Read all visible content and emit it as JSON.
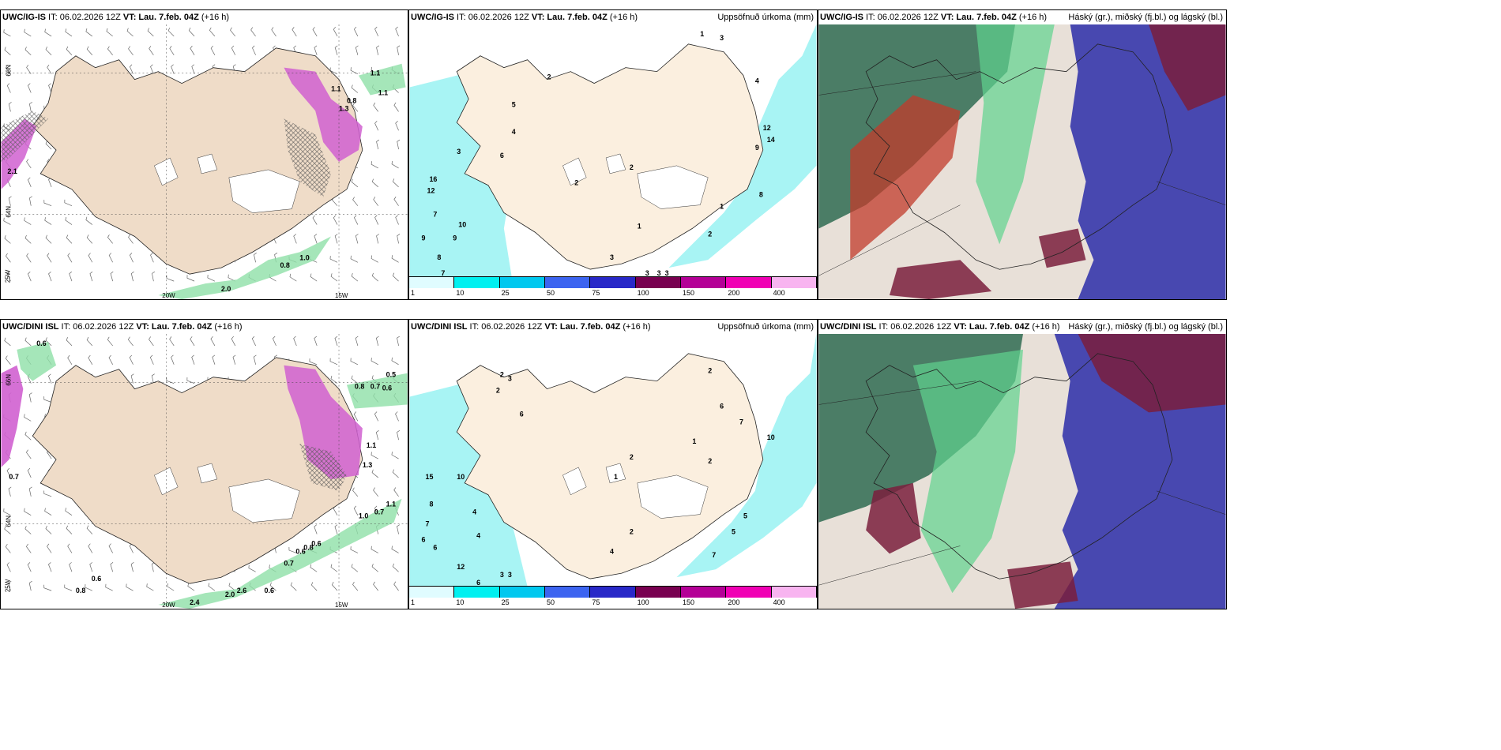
{
  "panels": [
    {
      "id": "p1",
      "title_model": "UWC/IG-IS",
      "title_it": " IT: 06.02.2026 12Z ",
      "title_vt_label": "VT:",
      "title_vt": " Lau. 7.feb. 04Z",
      "title_lead": " (+16 h)",
      "right_title": "",
      "axis": {
        "lat_a": "66N",
        "lat_b": "64N",
        "lon_a": "20W",
        "lon_b": "15W",
        "lon_c": "25W"
      },
      "labels": [
        "1.1",
        "1.1",
        "2.1",
        "1.0",
        "0.8",
        "2.0",
        "1.1",
        "1.3",
        "0.8"
      ]
    },
    {
      "id": "p2",
      "title_model": "UWC/IG-IS",
      "title_it": " IT: 06.02.2026 12Z ",
      "title_vt_label": "VT:",
      "title_vt": " Lau. 7.feb. 04Z",
      "title_lead": " (+16 h)",
      "right_title": "Uppsöfnuð úrkoma (mm)",
      "labels": [
        "2",
        "2",
        "5",
        "16",
        "12",
        "7",
        "10",
        "9",
        "9",
        "8",
        "7",
        "10",
        "6",
        "4",
        "3",
        "2",
        "1",
        "1",
        "3",
        "4",
        "14",
        "12",
        "9",
        "8",
        "1",
        "2",
        "3",
        "3",
        "3",
        "3",
        "1"
      ]
    },
    {
      "id": "p3",
      "title_model": "UWC/IG-IS",
      "title_it": " IT: 06.02.2026 12Z ",
      "title_vt_label": "VT:",
      "title_vt": " Lau. 7.feb. 04Z",
      "title_lead": " (+16 h)",
      "right_title": "Háský (gr.), miðský (fj.bl.) og lágský (bl.)"
    },
    {
      "id": "p4",
      "title_model": "UWC/DINI ISL",
      "title_it": " IT: 06.02.2026 12Z ",
      "title_vt_label": "VT:",
      "title_vt": " Lau. 7.feb. 04Z",
      "title_lead": " (+16 h)",
      "right_title": "",
      "axis": {
        "lat_a": "66N",
        "lat_b": "64N",
        "lon_a": "20W",
        "lon_b": "15W",
        "lon_c": "25W"
      },
      "labels": [
        "0.6",
        "0.5",
        "0.8",
        "0.7",
        "0.6",
        "1.1",
        "1.3",
        "1.0",
        "0.7",
        "1.1",
        "0.7",
        "0.8",
        "0.6",
        "0.7",
        "0.6",
        "0.8",
        "0.6",
        "2.4",
        "2.0",
        "2.6",
        "0.6"
      ]
    },
    {
      "id": "p5",
      "title_model": "UWC/DINI ISL",
      "title_it": " IT: 06.02.2026 12Z ",
      "title_vt_label": "VT:",
      "title_vt": " Lau. 7.feb. 04Z",
      "title_lead": " (+16 h)",
      "right_title": "Uppsöfnuð úrkoma (mm)",
      "labels": [
        "2",
        "3",
        "2",
        "6",
        "15",
        "10",
        "8",
        "7",
        "6",
        "6",
        "4",
        "4",
        "12",
        "6",
        "3",
        "3",
        "4",
        "2",
        "1",
        "2",
        "7",
        "5",
        "5",
        "10",
        "7",
        "6",
        "2",
        "1",
        "2"
      ]
    },
    {
      "id": "p6",
      "title_model": "UWC/DINI ISL",
      "title_it": " IT: 06.02.2026 12Z ",
      "title_vt_label": "VT:",
      "title_vt": " Lau. 7.feb. 04Z",
      "title_lead": " (+16 h)",
      "right_title": "Háský (gr.), miðský (fj.bl.) og lágský (bl.)"
    }
  ],
  "colorbar": {
    "ticks": [
      "1",
      "10",
      "25",
      "50",
      "75",
      "100",
      "150",
      "200",
      "400"
    ],
    "colors": [
      "#e0fcff",
      "#00f0f0",
      "#00c8ef",
      "#3c64f0",
      "#2828c8",
      "#780050",
      "#b40096",
      "#f000b4",
      "#f8b4f0"
    ]
  },
  "colors": {
    "land": "#efdcc8",
    "ice": "#ffffff",
    "sea": "#ffffff",
    "precip": "#a8f4f4",
    "green": "#6fd18f",
    "magenta": "#d060d0",
    "hi_cloud": "#2f6b52",
    "mid_cloud": "#c23b2b",
    "low_cloud": "#3737a8"
  },
  "icons": {
    "wind": "wind-barb-icon"
  }
}
